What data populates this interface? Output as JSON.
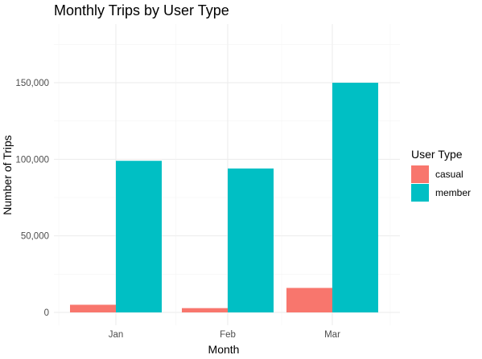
{
  "chart_data": {
    "type": "bar",
    "title": "Monthly Trips by User Type",
    "xlabel": "Month",
    "ylabel": "Number of Trips",
    "categories": [
      "Jan",
      "Feb",
      "Mar"
    ],
    "series": [
      {
        "name": "casual",
        "color": "#f8766d",
        "values": [
          5000,
          2800,
          16000
        ]
      },
      {
        "name": "member",
        "color": "#00bfc4",
        "values": [
          99000,
          94000,
          150000
        ]
      }
    ],
    "ylim": [
      0,
      185000
    ],
    "yticks": [
      0,
      50000,
      100000,
      150000
    ],
    "ytick_labels": [
      "0",
      "50,000",
      "100,000",
      "150,000"
    ],
    "legend": {
      "title": "User Type",
      "position": "right"
    },
    "grid": true
  }
}
